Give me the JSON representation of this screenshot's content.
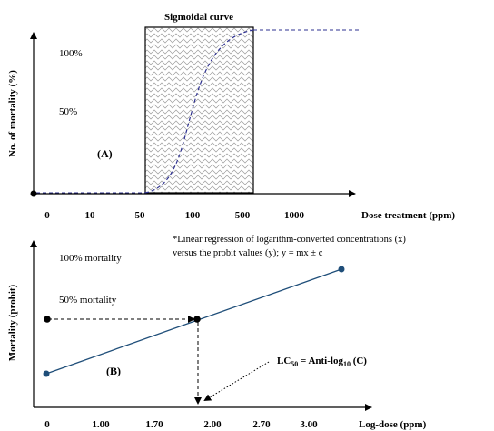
{
  "panel_a": {
    "title": "Sigmoidal curve",
    "ylabel": "No. of mortality (%)",
    "y_ticks": [
      "100%",
      "50%"
    ],
    "panel_label": "(A)",
    "x_ticks": [
      "0",
      "10",
      "50",
      "100",
      "500",
      "1000"
    ],
    "xlabel": "Dose treatment (ppm)"
  },
  "panel_b": {
    "ylabel": "Mortality (probit)",
    "label_100": "100% mortality",
    "label_50": "50% mortality",
    "panel_label": "(B)",
    "note_line1": "*Linear regression of logarithm-converted concentrations (x)",
    "note_line2": "versus the probit values (y); y = mx ± c",
    "lc50_prefix": "LC",
    "lc50_sub": "50",
    "lc50_mid": " = Anti-log",
    "lc50_sub2": "10",
    "lc50_suffix": " (C)",
    "x_ticks": [
      "0",
      "1.00",
      "1.70",
      "2.00",
      "2.70",
      "3.00"
    ],
    "xlabel": "Log-dose (ppm)"
  },
  "colors": {
    "axis": "#000000",
    "curve": "#2e3192",
    "regression": "#1f4e79",
    "point": "#1f4e79"
  }
}
